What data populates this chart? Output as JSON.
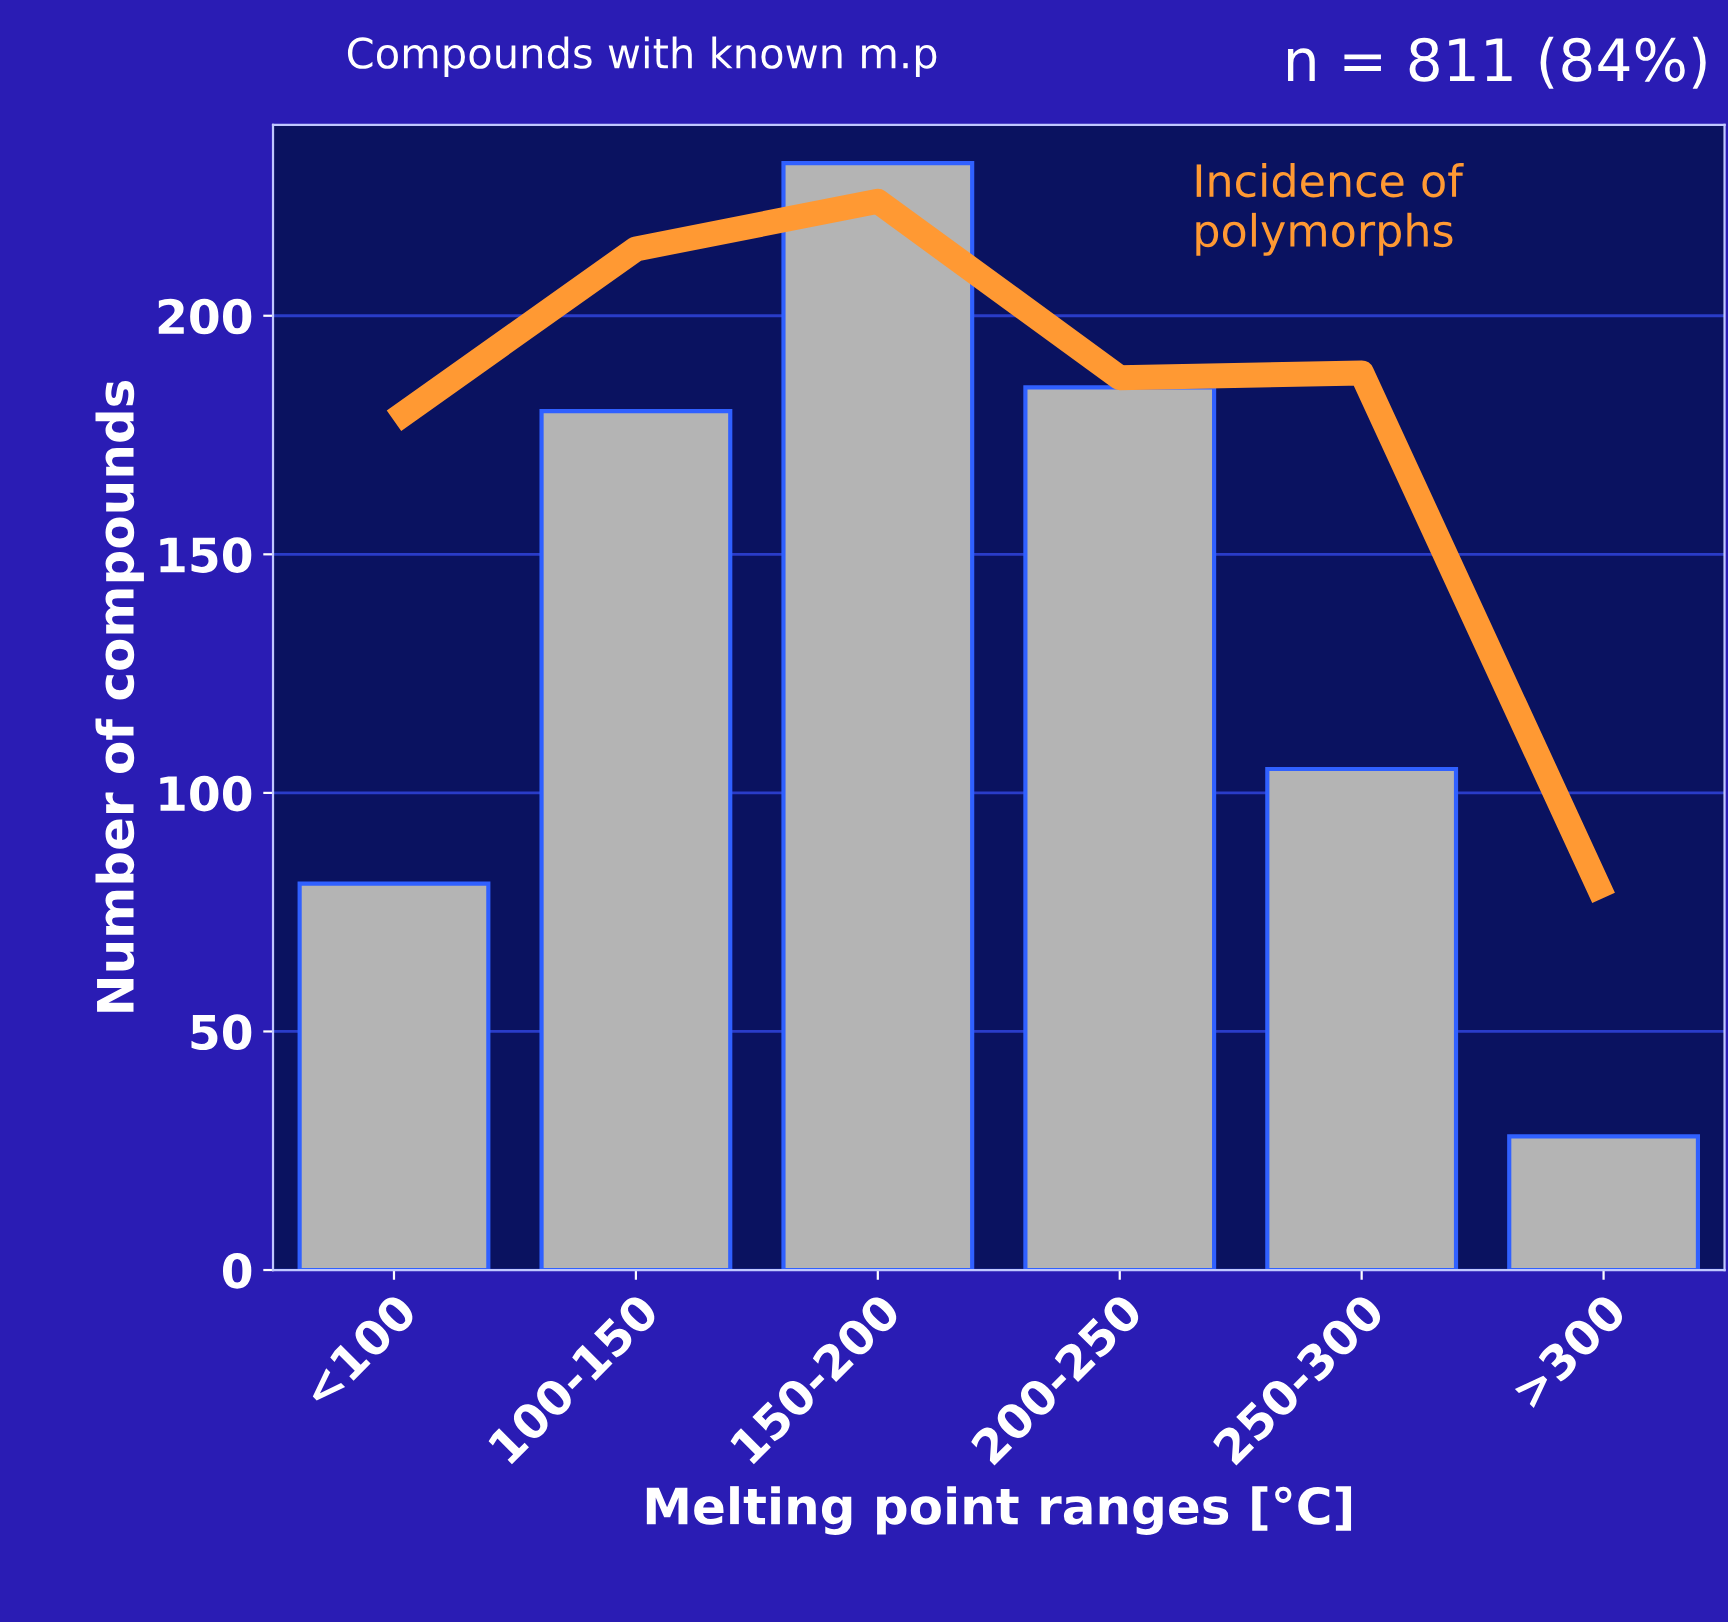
{
  "chart_data": {
    "type": "bar",
    "title": "Compounds with known m.p",
    "annotations": [
      "n = 811 (84%)"
    ],
    "xlabel": "Melting point ranges [°C]",
    "ylabel": "Number of compounds",
    "categories": [
      "<100",
      "100-150",
      "150-200",
      "200-250",
      "250-300",
      ">300"
    ],
    "series": [
      {
        "color": "#b4b4b4",
        "values": [
          81,
          180,
          232,
          185,
          105,
          28
        ]
      },
      {
        "type": "line",
        "name": "Incidence of polymorphs",
        "color": "#ff9933",
        "values": [
          178,
          214,
          224,
          187,
          188,
          78
        ]
      }
    ],
    "ylim": [
      0,
      240
    ],
    "yticks": [
      0,
      50,
      100,
      150,
      200
    ],
    "grid": "y",
    "legend": false,
    "marker": "none"
  }
}
